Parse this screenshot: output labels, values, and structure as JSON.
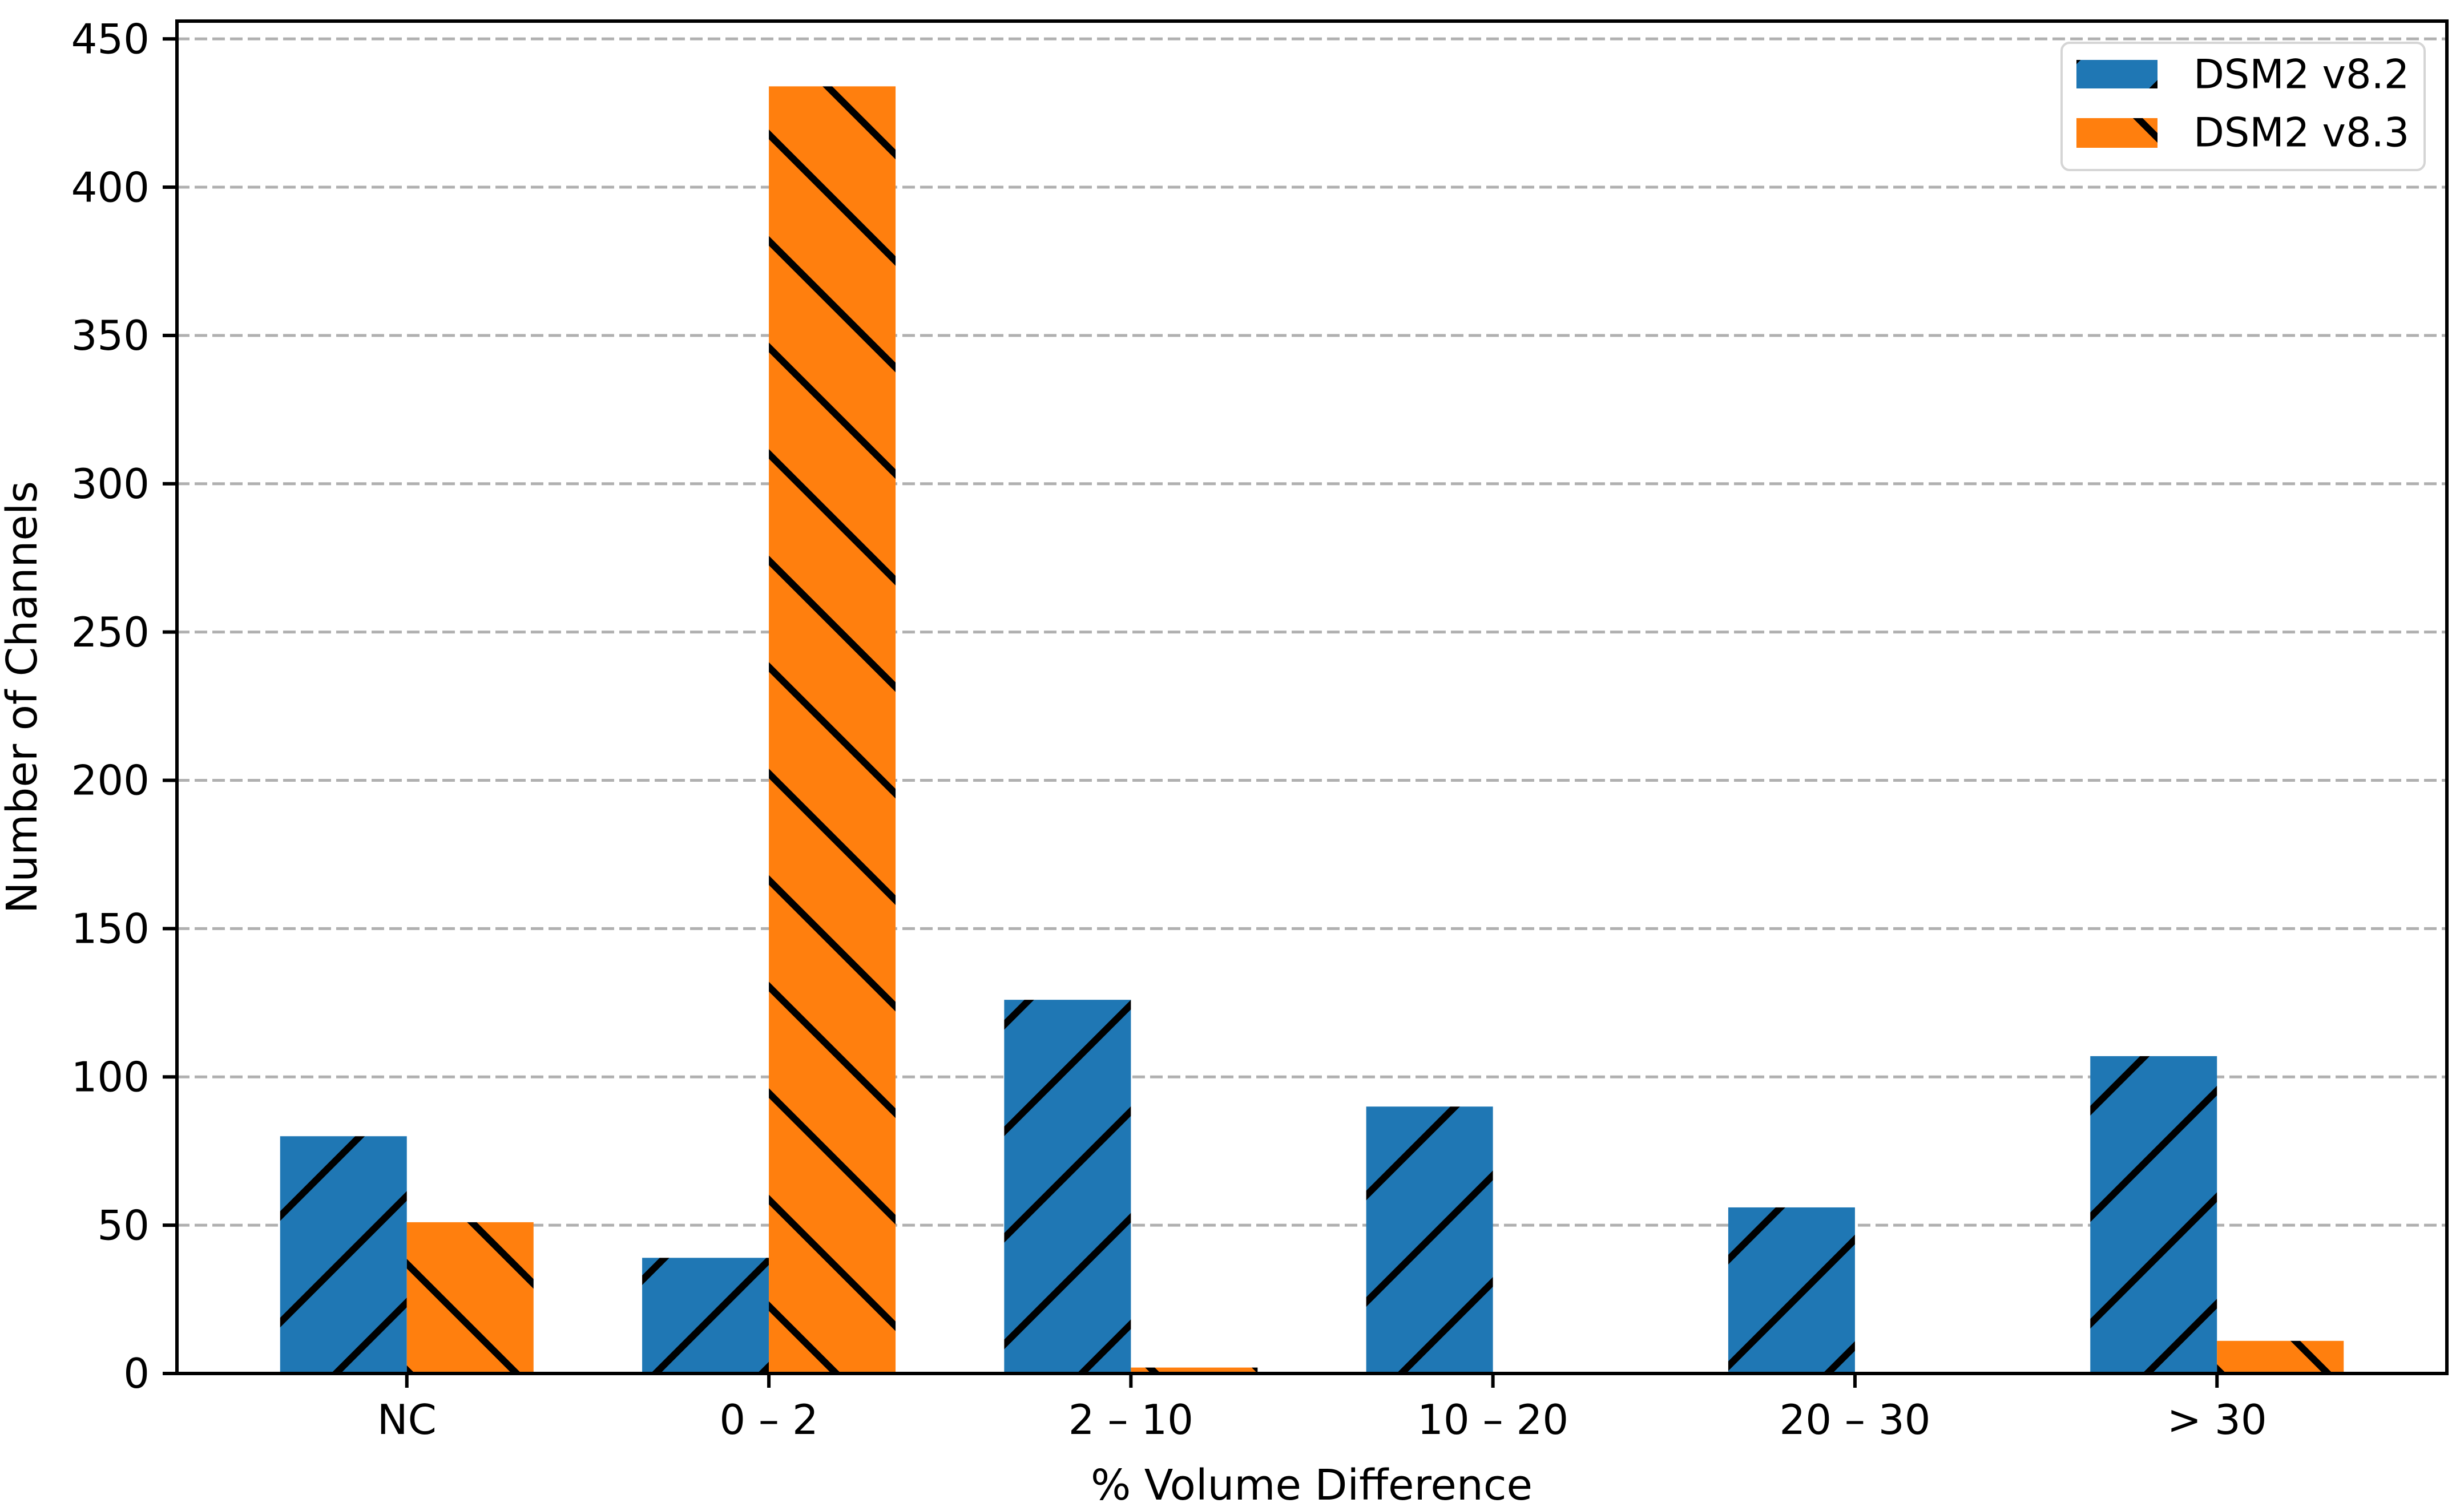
{
  "chart_data": {
    "type": "bar",
    "title": "",
    "xlabel": "% Volume Difference",
    "ylabel": "Number of Channels",
    "categories": [
      "NC",
      "0 – 2",
      "2 – 10",
      "10 – 20",
      "20 – 30",
      "> 30"
    ],
    "series": [
      {
        "name": "DSM2 v8.2",
        "color": "#1f77b4",
        "hatch": "/",
        "values": [
          80,
          39,
          126,
          90,
          56,
          107
        ]
      },
      {
        "name": "DSM2 v8.3",
        "color": "#ff7f0e",
        "hatch": "\\",
        "values": [
          51,
          434,
          2,
          0,
          0,
          11
        ]
      }
    ],
    "ylim": [
      0,
      456
    ],
    "yticks": [
      0,
      50,
      100,
      150,
      200,
      250,
      300,
      350,
      400,
      450
    ],
    "grid": "horizontal dashed",
    "legend_position": "upper right",
    "colors": {
      "hatch": "#000000",
      "grid": "#b0b0b0",
      "axis": "#000000",
      "background": "#ffffff",
      "legend_border": "#d5d5d5"
    }
  }
}
